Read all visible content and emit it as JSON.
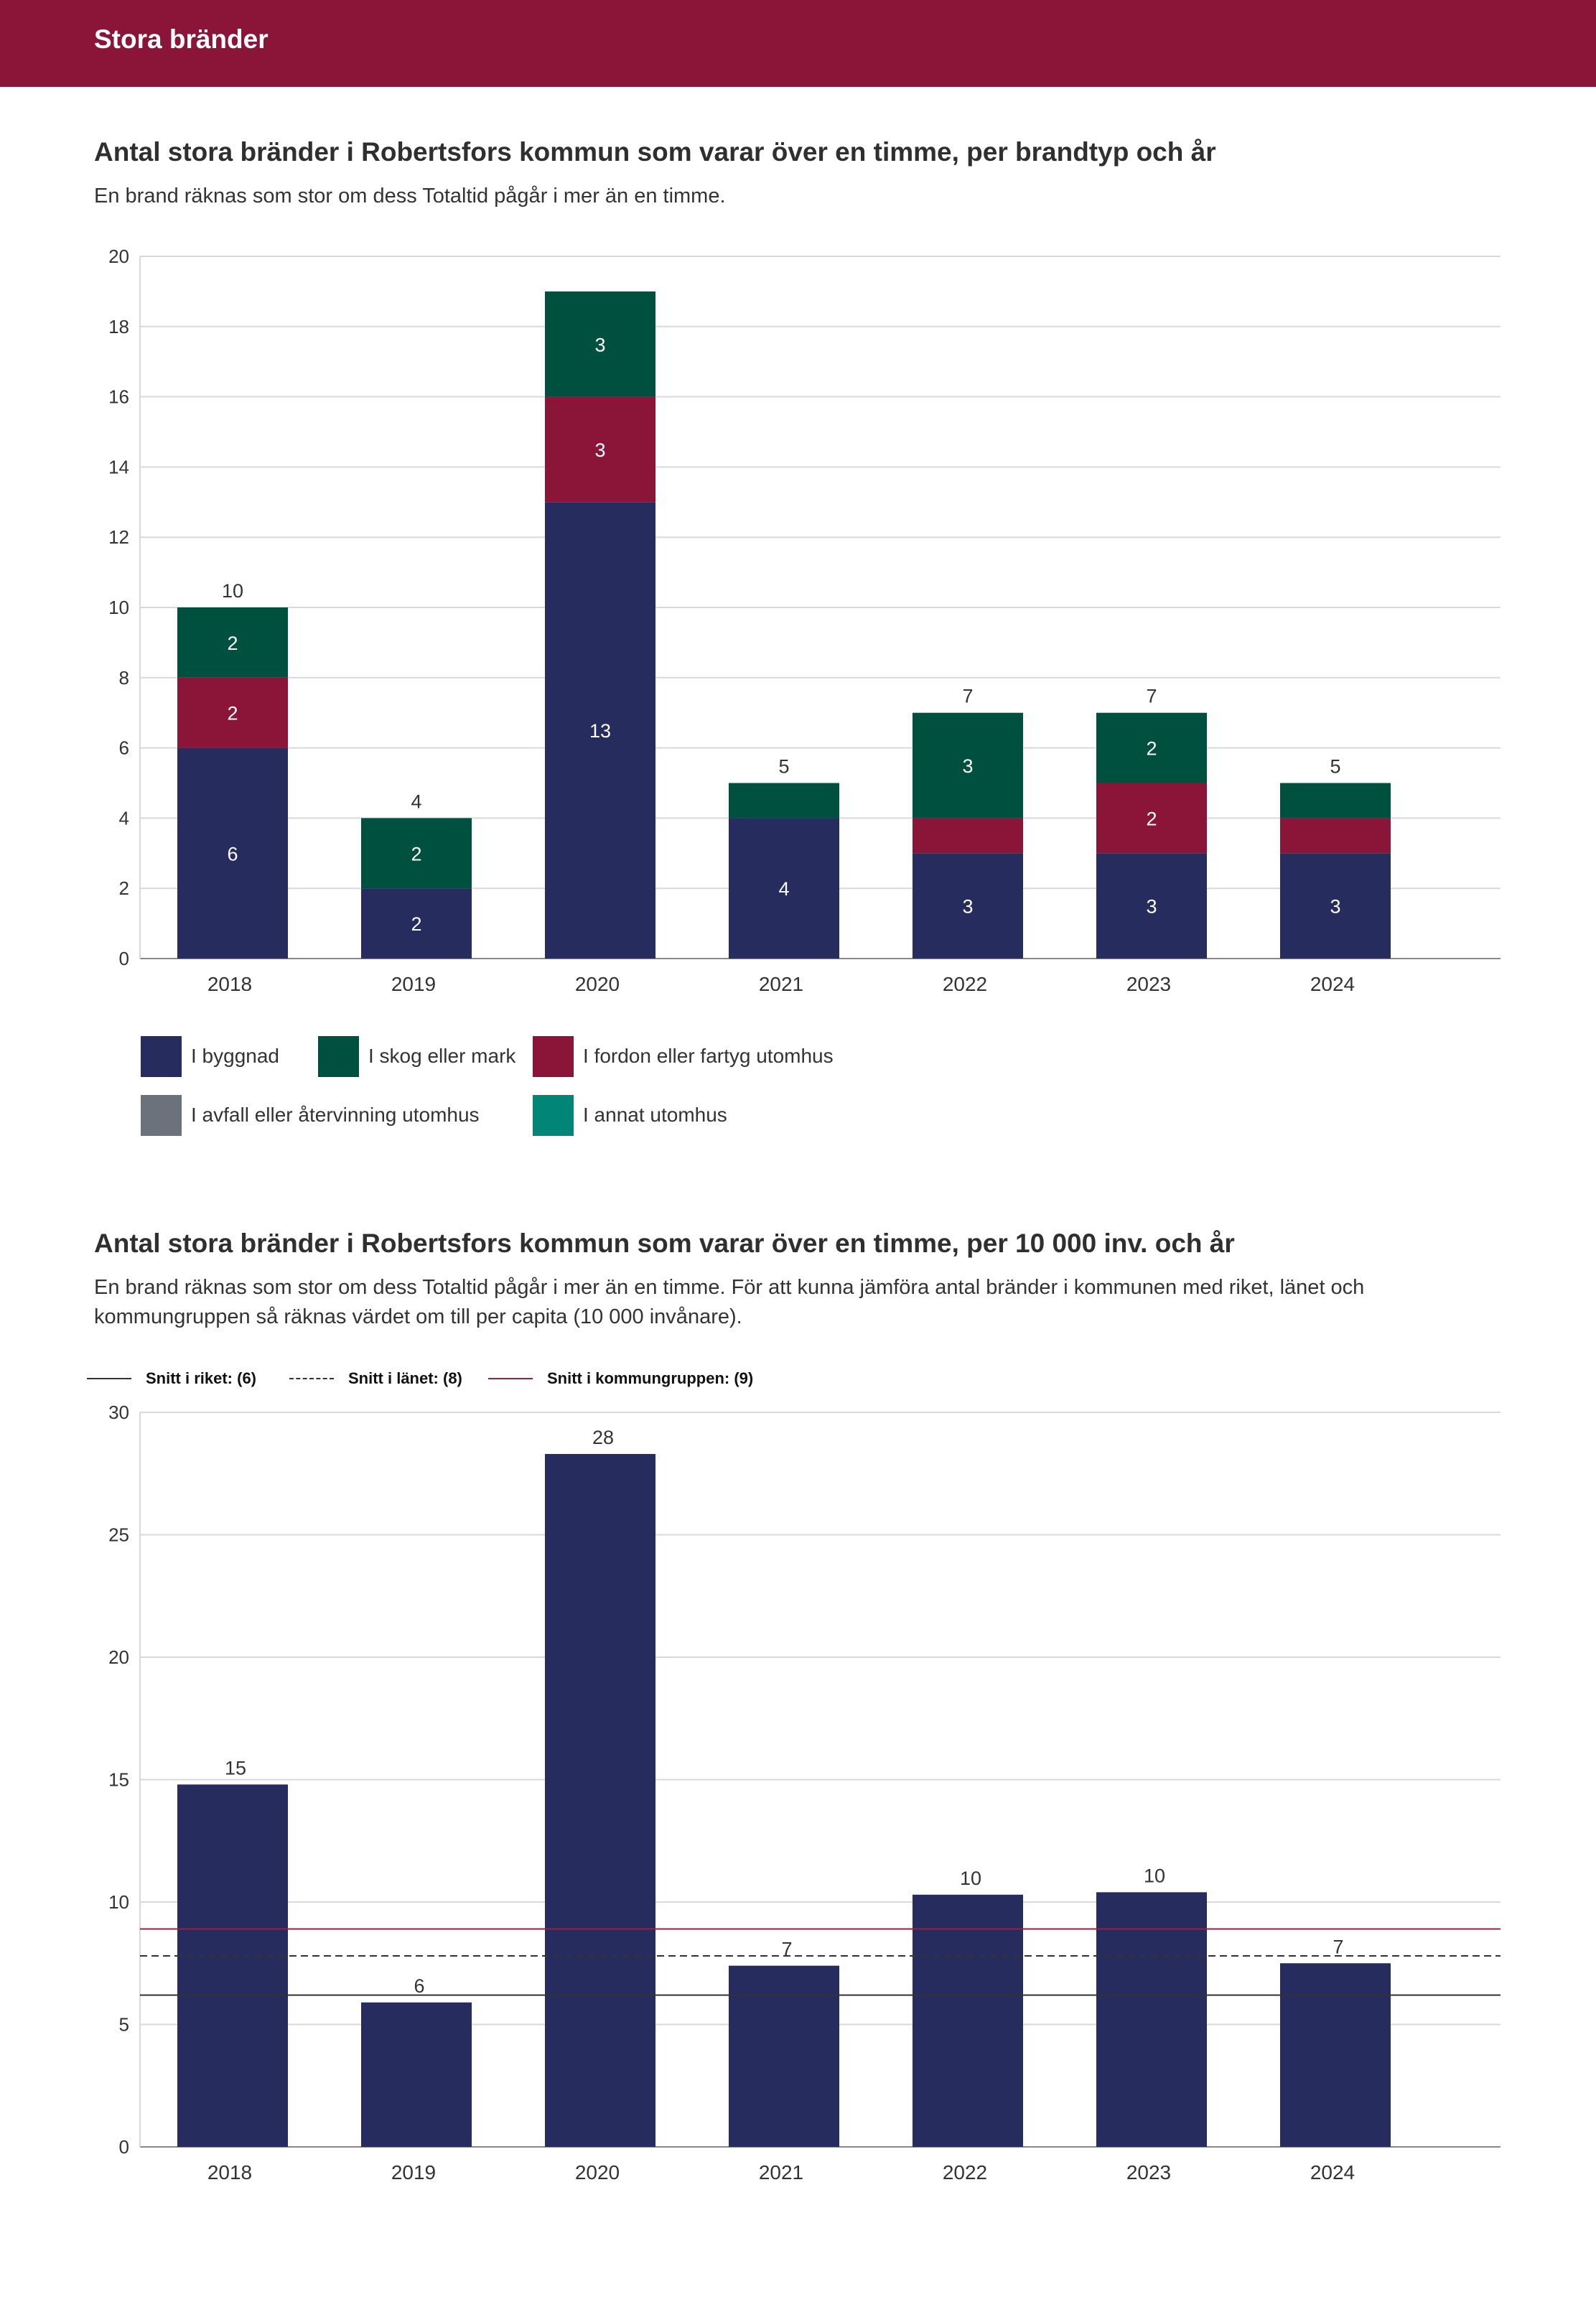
{
  "header": {
    "title": "Stora bränder"
  },
  "section1": {
    "title": "Antal stora bränder i Robertsfors kommun som varar över en timme, per brandtyp och år",
    "description": "En brand räknas som stor om dess Totaltid pågår i mer än en timme."
  },
  "section2": {
    "title": "Antal stora bränder i Robertsfors kommun som varar över en timme, per 10 000 inv. och år",
    "description": "En brand räknas som stor om dess Totaltid pågår i mer än en timme. För att kunna jämföra antal bränder i kommunen med riket, länet och kommungruppen så räknas värdet om till per capita (10 000 invånare)."
  },
  "legend": [
    {
      "label": "I byggnad",
      "color": "#262c5e"
    },
    {
      "label": "I skog eller mark",
      "color": "#00503f"
    },
    {
      "label": "I fordon eller fartyg utomhus",
      "color": "#8b1538"
    },
    {
      "label": "I avfall eller återvinning utomhus",
      "color": "#6c727c"
    },
    {
      "label": "I annat utomhus",
      "color": "#008577"
    }
  ],
  "averages": [
    {
      "label": "Snitt i riket: (6)",
      "value": 6.2,
      "color": "#333333",
      "style": "solid"
    },
    {
      "label": "Snitt i länet: (8)",
      "value": 7.8,
      "color": "#333333",
      "style": "dashed"
    },
    {
      "label": "Snitt i kommungruppen: (9)",
      "value": 8.9,
      "color": "#a01c3e",
      "style": "solid"
    }
  ],
  "chart_data": [
    {
      "type": "bar",
      "stacked": true,
      "categories": [
        "2018",
        "2019",
        "2020",
        "2021",
        "2022",
        "2023",
        "2024"
      ],
      "series": [
        {
          "name": "I byggnad",
          "values": [
            6,
            2,
            13,
            4,
            3,
            3,
            3
          ],
          "color": "#262c5e",
          "labels": [
            "6",
            "2",
            "13",
            "4",
            "3",
            "3",
            "3"
          ]
        },
        {
          "name": "I fordon eller fartyg utomhus",
          "values": [
            2,
            0,
            3,
            0,
            1,
            2,
            1
          ],
          "color": "#8b1538",
          "labels": [
            "2",
            "",
            "3",
            "",
            "",
            "2",
            ""
          ]
        },
        {
          "name": "I skog eller mark",
          "values": [
            2,
            2,
            3,
            1,
            3,
            2,
            1
          ],
          "color": "#00503f",
          "labels": [
            "2",
            "2",
            "3",
            "",
            "3",
            "2",
            ""
          ]
        }
      ],
      "totals": [
        "10",
        "4",
        "",
        "5",
        "7",
        "7",
        "5"
      ],
      "ylim": [
        0,
        20
      ],
      "yticks": [
        "0",
        "2",
        "4",
        "6",
        "8",
        "10",
        "12",
        "14",
        "16",
        "18",
        "20"
      ],
      "grid": true
    },
    {
      "type": "bar",
      "categories": [
        "2018",
        "2019",
        "2020",
        "2021",
        "2022",
        "2023",
        "2024"
      ],
      "values": [
        14.8,
        5.9,
        28.3,
        7.4,
        10.3,
        10.4,
        7.5
      ],
      "value_labels": [
        "15",
        "6",
        "28",
        "7",
        "10",
        "10",
        "7"
      ],
      "color": "#262c5e",
      "ylim": [
        0,
        30
      ],
      "yticks": [
        "0",
        "5",
        "10",
        "15",
        "20",
        "25",
        "30"
      ],
      "grid": true
    }
  ]
}
